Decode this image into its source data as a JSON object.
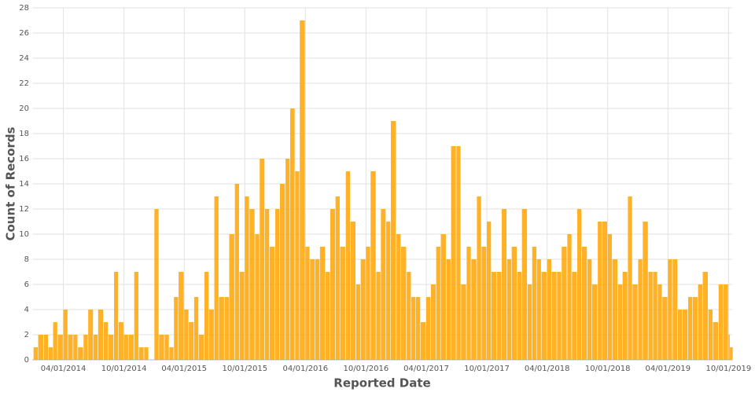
{
  "chart_data": {
    "type": "bar",
    "x_label": "Reported Date",
    "y_label": "Count of Records",
    "color": "#ffa500",
    "grid": true,
    "xlim": [
      "2013-12-28",
      "2019-10-12"
    ],
    "ylim": [
      0,
      28
    ],
    "yticks": [
      0,
      2,
      4,
      6,
      8,
      10,
      12,
      14,
      16,
      18,
      20,
      22,
      24,
      26,
      28
    ],
    "xticks": [
      {
        "value": "2014-04-01",
        "label": "04/01/2014"
      },
      {
        "value": "2014-10-01",
        "label": "10/01/2014"
      },
      {
        "value": "2015-04-01",
        "label": "04/01/2015"
      },
      {
        "value": "2015-10-01",
        "label": "10/01/2015"
      },
      {
        "value": "2016-04-01",
        "label": "04/01/2016"
      },
      {
        "value": "2016-10-01",
        "label": "10/01/2016"
      },
      {
        "value": "2017-04-01",
        "label": "04/01/2017"
      },
      {
        "value": "2017-10-01",
        "label": "10/01/2017"
      },
      {
        "value": "2018-04-01",
        "label": "04/01/2018"
      },
      {
        "value": "2018-10-01",
        "label": "10/01/2018"
      },
      {
        "value": "2019-04-01",
        "label": "04/01/2019"
      },
      {
        "value": "2019-10-01",
        "label": "10/01/2019"
      }
    ],
    "x": [
      "2014-01-01",
      "2014-01-15",
      "2014-02-01",
      "2014-02-15",
      "2014-03-01",
      "2014-03-15",
      "2014-04-01",
      "2014-04-15",
      "2014-05-01",
      "2014-05-15",
      "2014-06-01",
      "2014-06-15",
      "2014-07-01",
      "2014-07-15",
      "2014-08-01",
      "2014-08-15",
      "2014-09-01",
      "2014-09-15",
      "2014-10-01",
      "2014-10-15",
      "2014-11-01",
      "2014-11-15",
      "2014-12-01",
      "2014-12-15",
      "2015-01-01",
      "2015-01-15",
      "2015-02-01",
      "2015-02-15",
      "2015-03-01",
      "2015-03-15",
      "2015-04-01",
      "2015-04-15",
      "2015-05-01",
      "2015-05-15",
      "2015-06-01",
      "2015-06-15",
      "2015-07-01",
      "2015-07-15",
      "2015-08-01",
      "2015-08-15",
      "2015-09-01",
      "2015-09-15",
      "2015-10-01",
      "2015-10-15",
      "2015-11-01",
      "2015-11-15",
      "2015-12-01",
      "2015-12-15",
      "2016-01-01",
      "2016-01-15",
      "2016-02-01",
      "2016-02-15",
      "2016-03-01",
      "2016-03-15",
      "2016-04-01",
      "2016-04-15",
      "2016-05-01",
      "2016-05-15",
      "2016-06-01",
      "2016-06-15",
      "2016-07-01",
      "2016-07-15",
      "2016-08-01",
      "2016-08-15",
      "2016-09-01",
      "2016-09-15",
      "2016-10-01",
      "2016-10-15",
      "2016-11-01",
      "2016-11-15",
      "2016-12-01",
      "2016-12-15",
      "2017-01-01",
      "2017-01-15",
      "2017-02-01",
      "2017-02-15",
      "2017-03-01",
      "2017-03-15",
      "2017-04-01",
      "2017-04-15",
      "2017-05-01",
      "2017-05-15",
      "2017-06-01",
      "2017-06-15",
      "2017-07-01",
      "2017-07-15",
      "2017-08-01",
      "2017-08-15",
      "2017-09-01",
      "2017-09-15",
      "2017-10-01",
      "2017-10-15",
      "2017-11-01",
      "2017-11-15",
      "2017-12-01",
      "2017-12-15",
      "2018-01-01",
      "2018-01-15",
      "2018-02-01",
      "2018-02-15",
      "2018-03-01",
      "2018-03-15",
      "2018-04-01",
      "2018-04-15",
      "2018-05-01",
      "2018-05-15",
      "2018-06-01",
      "2018-06-15",
      "2018-07-01",
      "2018-07-15",
      "2018-08-01",
      "2018-08-15",
      "2018-09-01",
      "2018-09-15",
      "2018-10-01",
      "2018-10-15",
      "2018-11-01",
      "2018-11-15",
      "2018-12-01",
      "2018-12-15",
      "2019-01-01",
      "2019-01-15",
      "2019-02-01",
      "2019-02-15",
      "2019-03-01",
      "2019-03-15",
      "2019-04-01",
      "2019-04-15",
      "2019-05-01",
      "2019-05-15",
      "2019-06-01",
      "2019-06-15",
      "2019-07-01",
      "2019-07-15",
      "2019-08-01",
      "2019-08-15",
      "2019-09-01",
      "2019-09-15",
      "2019-10-01",
      "2019-10-05"
    ],
    "values": [
      1,
      2,
      2,
      1,
      3,
      2,
      4,
      2,
      2,
      1,
      2,
      4,
      2,
      4,
      3,
      2,
      7,
      3,
      2,
      2,
      7,
      1,
      1,
      null,
      12,
      2,
      2,
      1,
      5,
      7,
      4,
      3,
      5,
      2,
      7,
      4,
      13,
      5,
      5,
      10,
      14,
      7,
      13,
      12,
      10,
      16,
      12,
      9,
      12,
      14,
      16,
      20,
      15,
      27,
      9,
      8,
      8,
      9,
      7,
      12,
      13,
      9,
      15,
      11,
      6,
      8,
      9,
      15,
      7,
      12,
      11,
      19,
      10,
      9,
      7,
      5,
      5,
      3,
      5,
      6,
      9,
      10,
      8,
      17,
      17,
      6,
      9,
      8,
      13,
      9,
      11,
      7,
      7,
      12,
      8,
      9,
      7,
      12,
      6,
      9,
      8,
      7,
      8,
      7,
      7,
      9,
      10,
      7,
      12,
      9,
      8,
      6,
      11,
      11,
      10,
      8,
      6,
      7,
      13,
      6,
      8,
      11,
      7,
      7,
      6,
      5,
      8,
      8,
      4,
      4,
      5,
      5,
      6,
      7,
      4,
      3,
      6,
      6,
      2,
      1
    ]
  }
}
